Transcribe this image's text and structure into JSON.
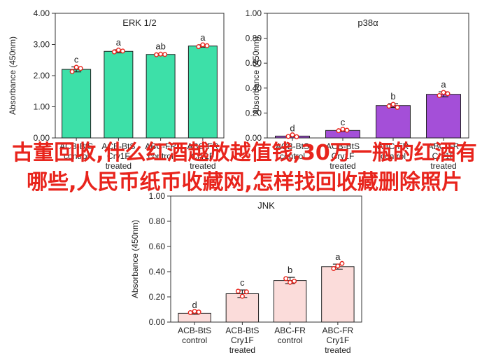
{
  "chart_data": [
    {
      "type": "bar",
      "title": "ERK 1/2",
      "ylabel": "Absorbance (450nm)",
      "ylim": [
        0,
        4
      ],
      "yticks": [
        "0.00",
        "1.00",
        "2.00",
        "3.00",
        "4.00"
      ],
      "categories": [
        [
          "ACB-BtS",
          "control"
        ],
        [
          "ACB-BtS",
          "Cry1F",
          "treated"
        ],
        [
          "ABC-FR",
          "control"
        ],
        [
          "ABC-FR",
          "Cry1F",
          "treated"
        ]
      ],
      "values": [
        2.2,
        2.78,
        2.68,
        2.95
      ],
      "errors": [
        0.08,
        0.05,
        0.03,
        0.04
      ],
      "points": [
        [
          2.13,
          2.27,
          2.23
        ],
        [
          2.76,
          2.82,
          2.79
        ],
        [
          2.67,
          2.69,
          2.68
        ],
        [
          2.93,
          2.99,
          2.96
        ]
      ],
      "letters": [
        "c",
        "a",
        "ab",
        "a"
      ],
      "bar_color": "#3de0a8",
      "point_color": "#e8241c"
    },
    {
      "type": "bar",
      "title": "p38α",
      "ylabel": "Absorbance (450nm)",
      "ylim": [
        0,
        1
      ],
      "yticks": [
        "0.00",
        "0.20",
        "0.40",
        "0.60",
        "0.80",
        "1.00"
      ],
      "categories": [
        [
          "ACB-BtS",
          "control"
        ],
        [
          "ACB-BtS",
          "Cry1F",
          "treated"
        ],
        [
          "ABC-FR",
          "control"
        ],
        [
          "ABC-FR",
          "Cry1F",
          "treated"
        ]
      ],
      "values": [
        0.015,
        0.06,
        0.26,
        0.35
      ],
      "errors": [
        0.006,
        0.008,
        0.015,
        0.02
      ],
      "points": [
        [
          0.012,
          0.025,
          0.01
        ],
        [
          0.058,
          0.07,
          0.062
        ],
        [
          0.255,
          0.27,
          0.245
        ],
        [
          0.34,
          0.365,
          0.355
        ]
      ],
      "letters": [
        "d",
        "c",
        "b",
        "a"
      ],
      "bar_color": "#a44fd8",
      "point_color": "#e8241c"
    },
    {
      "type": "bar",
      "title": "JNK",
      "ylabel": "Absorbance (450nm)",
      "ylim": [
        0,
        1
      ],
      "yticks": [
        "0.00",
        "0.20",
        "0.40",
        "0.60",
        "0.80",
        "1.00"
      ],
      "categories": [
        [
          "ACB-BtS",
          "control"
        ],
        [
          "ACB-BtS",
          "Cry1F",
          "treated"
        ],
        [
          "ABC-FR",
          "control"
        ],
        [
          "ABC-FR",
          "Cry1F",
          "treated"
        ]
      ],
      "values": [
        0.07,
        0.225,
        0.33,
        0.44
      ],
      "errors": [
        0.008,
        0.03,
        0.025,
        0.02
      ],
      "points": [
        [
          0.075,
          0.085,
          0.08
        ],
        [
          0.245,
          0.205,
          0.24
        ],
        [
          0.345,
          0.315,
          0.325
        ],
        [
          0.425,
          0.445,
          0.465
        ]
      ],
      "letters": [
        "d",
        "c",
        "b",
        "a"
      ],
      "bar_color": "#fbdcda",
      "point_color": "#e8241c"
    }
  ],
  "overlay_text": "古董回收,什么红酒越放越值钱,30万一瓶的红酒有哪些,人民币纸币收藏网,怎样找回收藏删除照片"
}
